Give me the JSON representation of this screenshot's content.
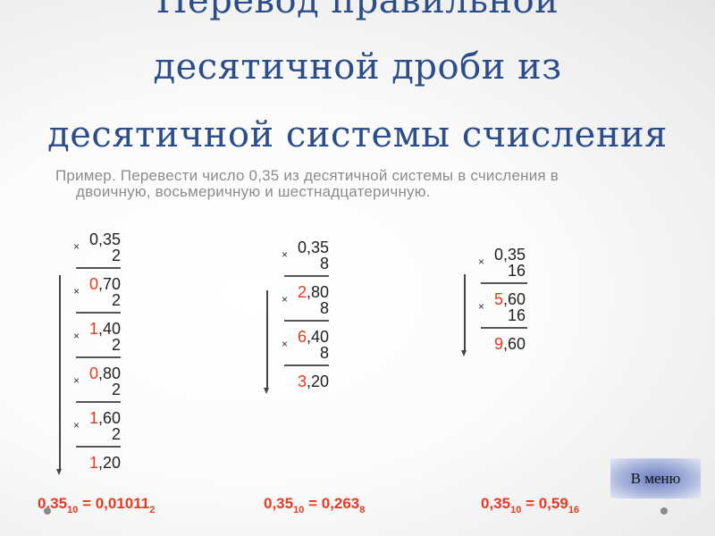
{
  "title": {
    "lines": [
      "Перевод правильной",
      "десятичной дроби из",
      "десятичной системы счисления"
    ]
  },
  "example": {
    "line1": "Пример. Перевести число 0,35 из десятичной системы в счисления в",
    "line2": "двоичную, восьмеричную и шестнадцатеричную."
  },
  "columns": [
    {
      "start": "0,35",
      "multiplier": "2",
      "products": [
        {
          "int": "0",
          "frac": ",70"
        },
        {
          "int": "1",
          "frac": ",40"
        },
        {
          "int": "0",
          "frac": ",80"
        },
        {
          "int": "1",
          "frac": ",60"
        },
        {
          "int": "1",
          "frac": ",20"
        }
      ],
      "result": {
        "lhs": "0,35",
        "lhs_base": "10",
        "eq": " = ",
        "rhs": "0,01011",
        "rhs_base": "2"
      }
    },
    {
      "start": "0,35",
      "multiplier": "8",
      "products": [
        {
          "int": "2",
          "frac": ",80"
        },
        {
          "int": "6",
          "frac": ",40"
        },
        {
          "int": "3",
          "frac": ",20"
        }
      ],
      "result": {
        "lhs": "0,35",
        "lhs_base": "10",
        "eq": " = ",
        "rhs": "0,263",
        "rhs_base": "8"
      }
    },
    {
      "start": "0,35",
      "multiplier": "16",
      "products": [
        {
          "int": "5",
          "frac": ",60"
        },
        {
          "int": "9",
          "frac": ",60"
        }
      ],
      "result": {
        "lhs": "0,35",
        "lhs_base": "10",
        "eq": " = ",
        "rhs": "0,59",
        "rhs_base": "16"
      }
    }
  ],
  "times_sign": "×",
  "menu_button": {
    "label": "В меню"
  },
  "colors": {
    "title": "#2b4d8a",
    "highlight": "#e8391e",
    "text": "#8c8c8c"
  }
}
